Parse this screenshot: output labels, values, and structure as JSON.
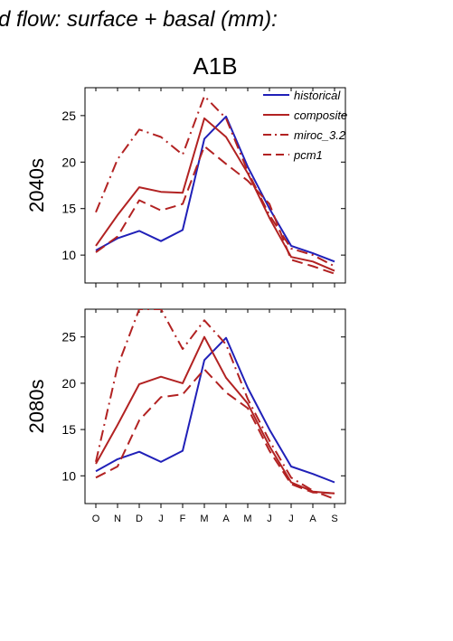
{
  "figure": {
    "title": "d flow: surface + basal (mm):",
    "scenario": "A1B"
  },
  "colors": {
    "historical": "#2020b8",
    "future": "#b22222"
  },
  "chart_data": [
    {
      "type": "line",
      "title": "2040s",
      "ylabel": "2040s",
      "x": [
        "O",
        "N",
        "D",
        "J",
        "F",
        "M",
        "A",
        "M",
        "J",
        "J",
        "A",
        "S"
      ],
      "ylim": [
        7,
        28
      ],
      "yticks": [
        10,
        15,
        20,
        25
      ],
      "grid": false,
      "legend": "top-right",
      "series": [
        {
          "name": "historical",
          "style": "solid",
          "color": "#2020b8",
          "values": [
            10.5,
            11.8,
            12.6,
            11.5,
            12.7,
            22.5,
            24.9,
            19.5,
            15.0,
            11.0,
            10.2,
            9.3
          ]
        },
        {
          "name": "composite",
          "style": "solid",
          "color": "#b22222",
          "values": [
            11.0,
            14.3,
            17.3,
            16.8,
            16.7,
            24.7,
            22.7,
            18.8,
            14.0,
            9.8,
            9.3,
            8.3
          ]
        },
        {
          "name": "miroc_3.2",
          "style": "dashdot",
          "color": "#b22222",
          "values": [
            14.6,
            20.3,
            23.5,
            22.7,
            20.8,
            27.1,
            24.7,
            19.0,
            14.3,
            10.7,
            10.0,
            8.8
          ]
        },
        {
          "name": "pcm1",
          "style": "dashed",
          "color": "#b22222",
          "values": [
            10.3,
            12.0,
            15.9,
            14.8,
            15.5,
            21.7,
            19.8,
            18.0,
            15.5,
            9.5,
            8.8,
            8.0
          ]
        }
      ]
    },
    {
      "type": "line",
      "title": "2080s",
      "ylabel": "2080s",
      "x": [
        "O",
        "N",
        "D",
        "J",
        "F",
        "M",
        "A",
        "M",
        "J",
        "J",
        "A",
        "S"
      ],
      "ylim": [
        7,
        28
      ],
      "yticks": [
        10,
        15,
        20,
        25
      ],
      "grid": false,
      "series": [
        {
          "name": "historical",
          "style": "solid",
          "color": "#2020b8",
          "values": [
            10.5,
            11.8,
            12.6,
            11.5,
            12.7,
            22.5,
            24.9,
            19.5,
            15.0,
            11.0,
            10.2,
            9.3
          ]
        },
        {
          "name": "composite",
          "style": "solid",
          "color": "#b22222",
          "values": [
            11.3,
            15.5,
            19.9,
            20.7,
            20.0,
            25.0,
            20.6,
            17.8,
            13.2,
            9.3,
            8.3,
            8.1
          ]
        },
        {
          "name": "miroc_3.2",
          "style": "dashdot",
          "color": "#b22222",
          "values": [
            11.5,
            21.8,
            28.0,
            28.0,
            23.7,
            26.8,
            24.2,
            18.3,
            13.8,
            9.8,
            8.4,
            7.5
          ]
        },
        {
          "name": "pcm1",
          "style": "dashed",
          "color": "#b22222",
          "values": [
            9.8,
            11.0,
            16.0,
            18.5,
            18.8,
            21.5,
            19.0,
            17.3,
            12.7,
            9.1,
            8.2,
            8.1
          ]
        }
      ]
    }
  ]
}
